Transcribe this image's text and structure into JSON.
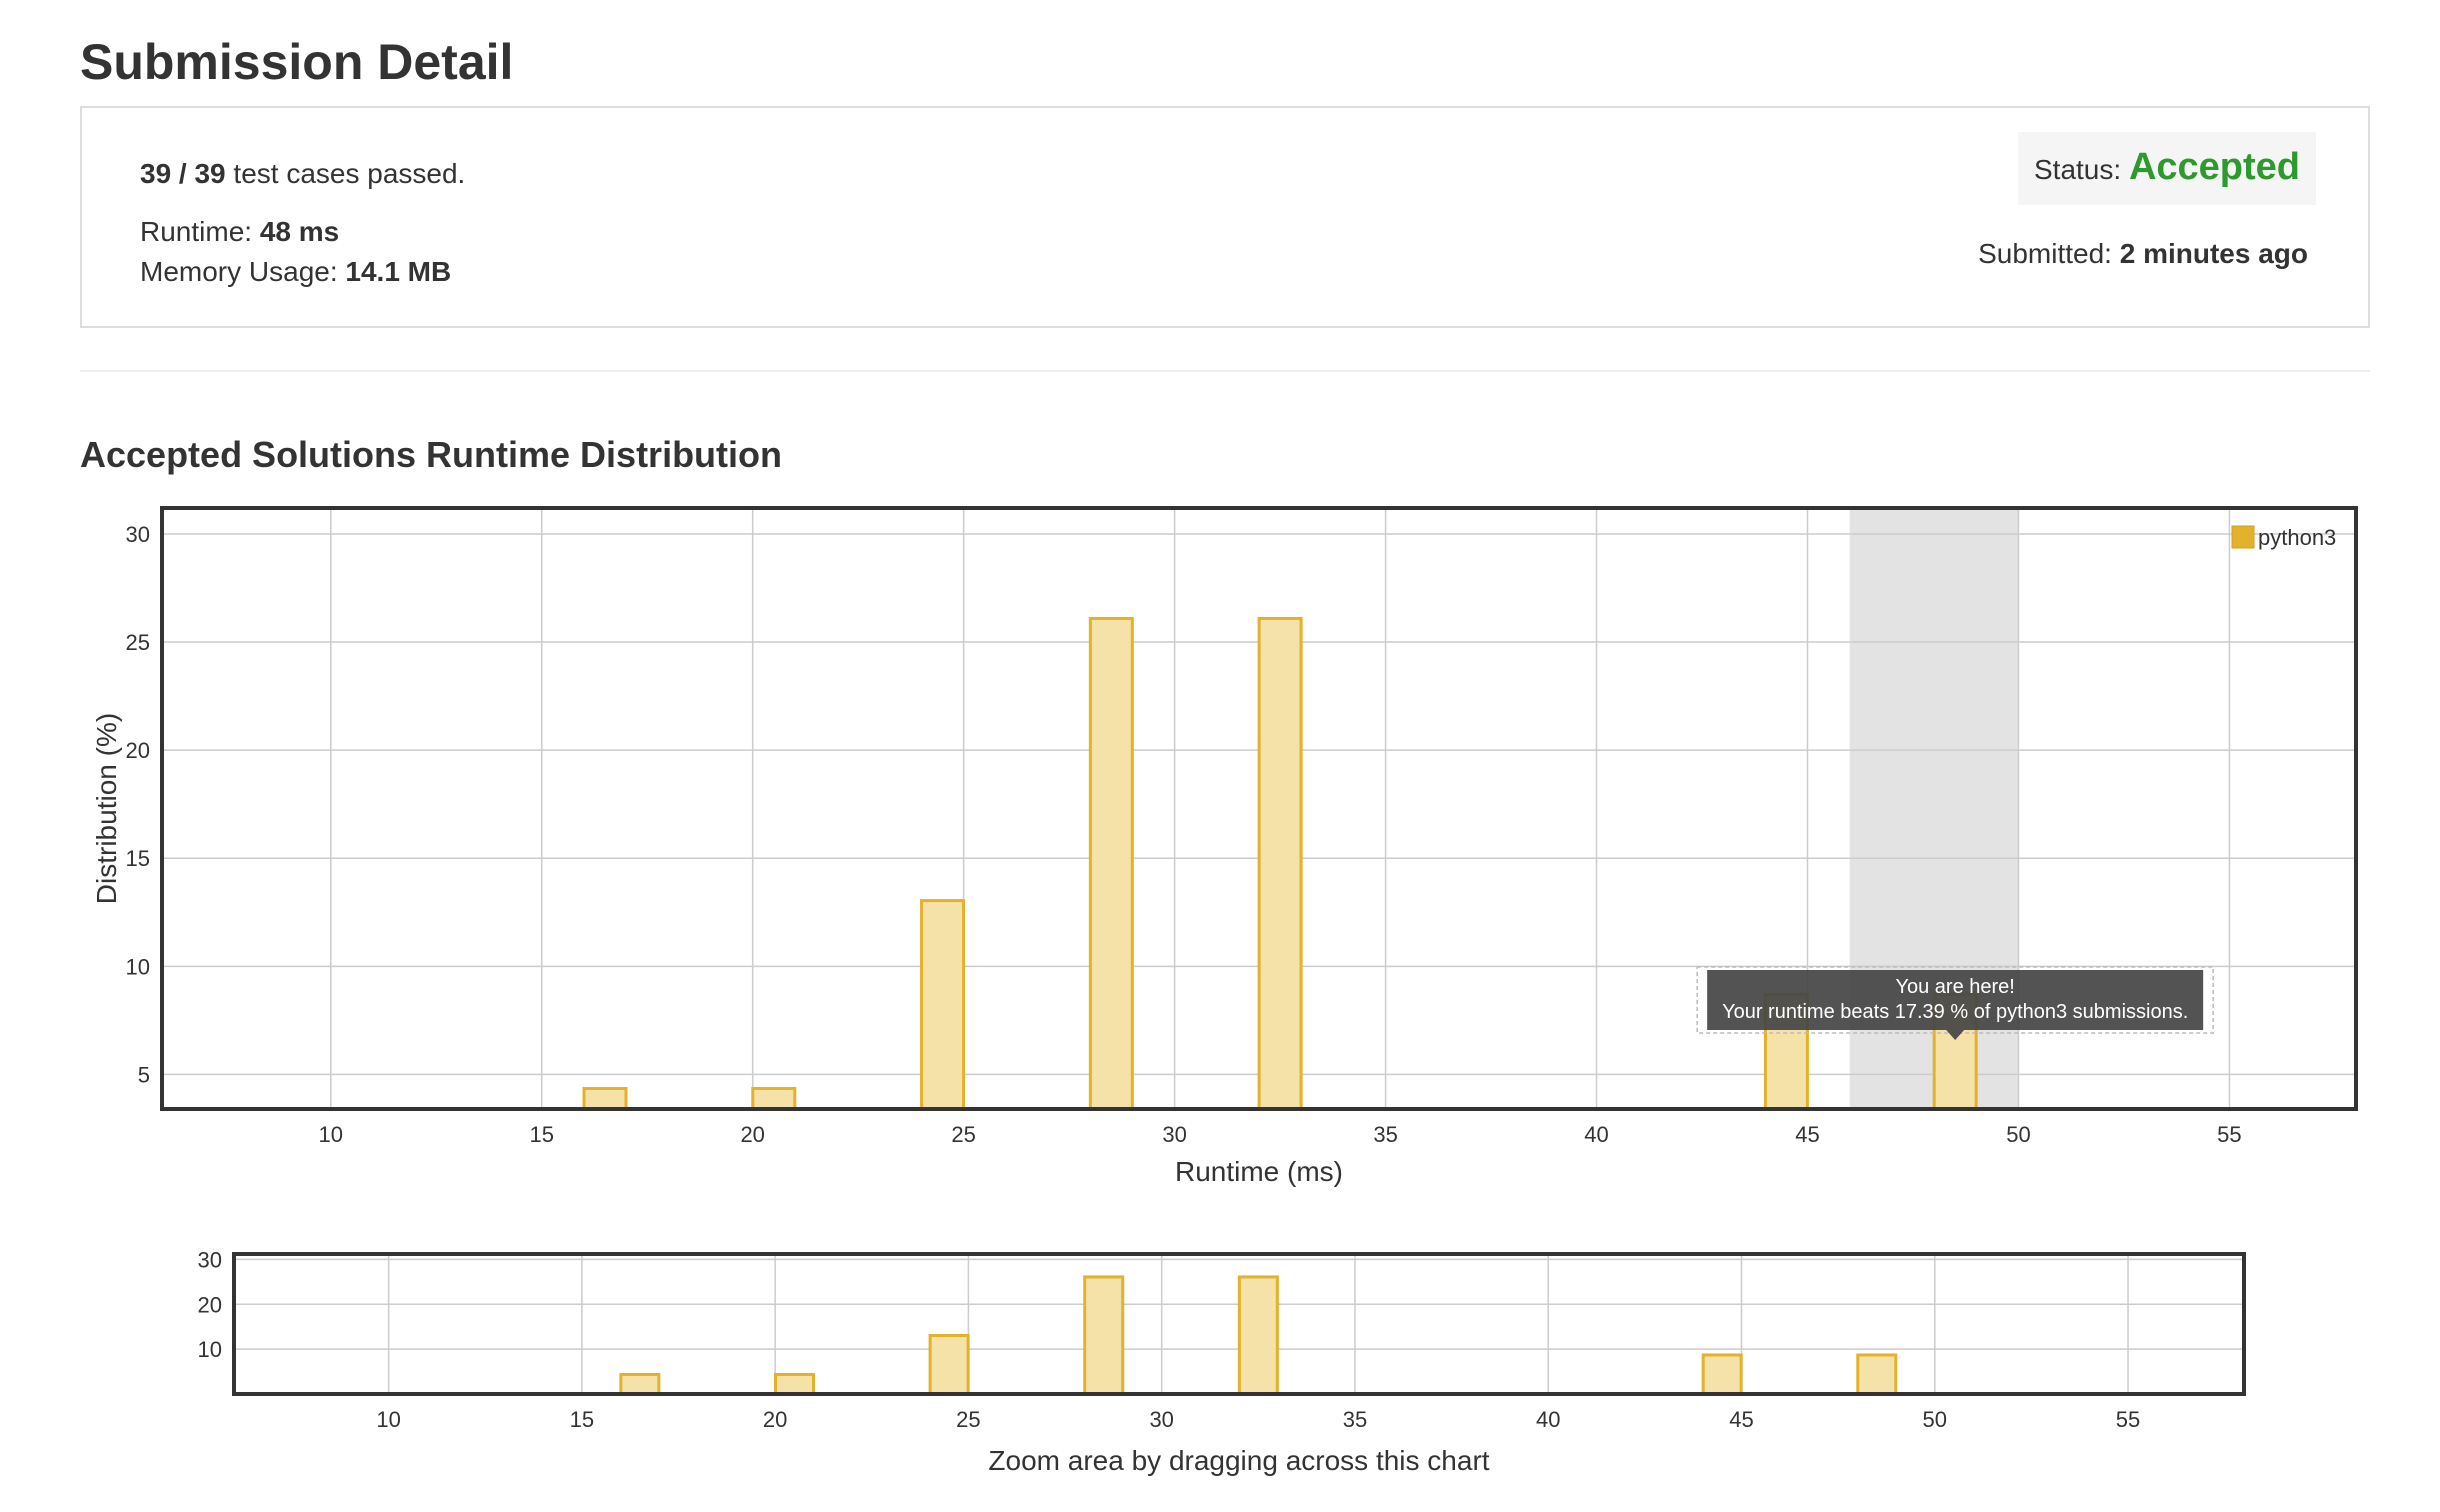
{
  "header": {
    "title": "Submission Detail"
  },
  "details": {
    "passed": "39 / 39",
    "passed_suffix": " test cases passed.",
    "runtime_label": "Runtime: ",
    "runtime_value": "48 ms",
    "memory_label": "Memory Usage: ",
    "memory_value": "14.1 MB",
    "status_label": "Status: ",
    "status_value": "Accepted",
    "submitted_label": "Submitted: ",
    "submitted_value": "2 minutes ago"
  },
  "colors": {
    "accent_bar_fill": "#f5e2a8",
    "accent_bar_stroke": "#e3b12c",
    "status_green": "#2e9a2e",
    "highlight_band": "#e3e3e3",
    "tooltip_bg": "#444444"
  },
  "tooltip": {
    "line1": "You are here!",
    "line2": "Your runtime beats 17.39 % of python3 submissions."
  },
  "zoom_hint": "Zoom area by dragging across this chart",
  "chart_data": [
    {
      "type": "bar",
      "title": "Accepted Solutions Runtime Distribution",
      "xlabel": "Runtime (ms)",
      "ylabel": "Distribution (%)",
      "xlim": [
        6,
        58
      ],
      "ylim": [
        3.4,
        31.2
      ],
      "xticks": [
        10,
        15,
        20,
        25,
        30,
        35,
        40,
        45,
        50,
        55
      ],
      "yticks": [
        5,
        10,
        15,
        20,
        25,
        30
      ],
      "grid": true,
      "legend_position": "top-right",
      "highlight_range": [
        46,
        50
      ],
      "series": [
        {
          "name": "python3",
          "x": [
            16.5,
            20.5,
            24.5,
            28.5,
            32.5,
            44.5,
            48.5
          ],
          "values": [
            4.35,
            4.35,
            13.04,
            26.09,
            26.09,
            8.7,
            8.7
          ]
        }
      ]
    },
    {
      "type": "bar",
      "title": "",
      "xlabel": "",
      "ylabel": "",
      "xlim": [
        6,
        58
      ],
      "ylim": [
        0,
        31.2
      ],
      "xticks": [
        10,
        15,
        20,
        25,
        30,
        35,
        40,
        45,
        50,
        55
      ],
      "yticks": [
        10,
        20,
        30
      ],
      "grid": true,
      "series": [
        {
          "x": [
            16.5,
            20.5,
            24.5,
            28.5,
            32.5,
            44.5,
            48.5
          ],
          "values": [
            4.35,
            4.35,
            13.04,
            26.09,
            26.09,
            8.7,
            8.7
          ]
        }
      ]
    }
  ]
}
